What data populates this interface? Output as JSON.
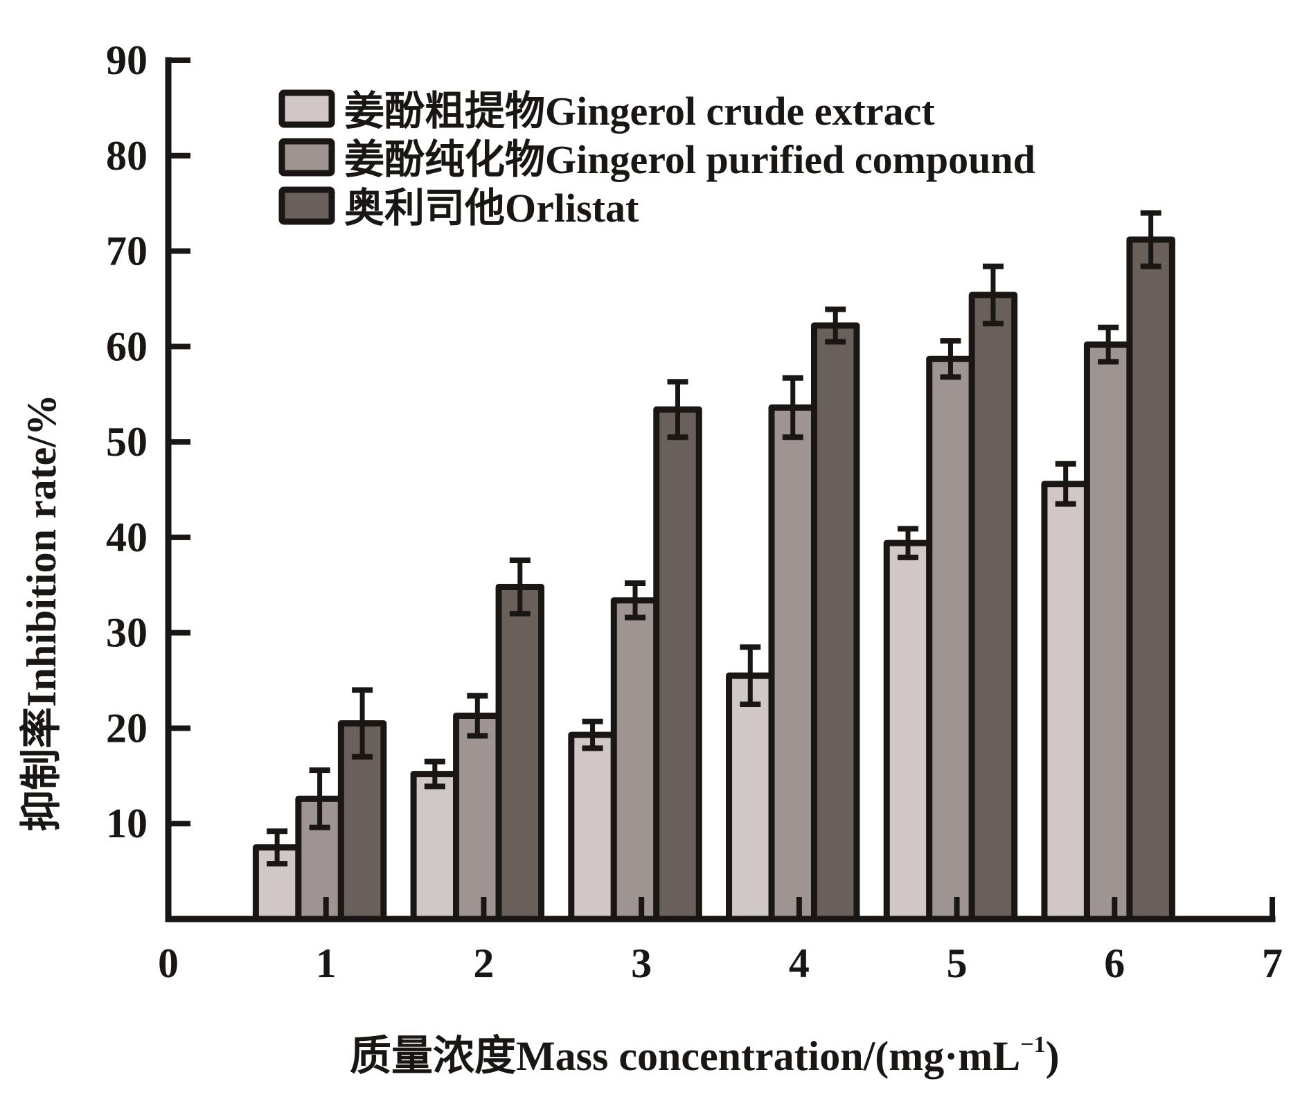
{
  "chart_data": {
    "type": "bar",
    "title": "",
    "xlabel": "质量浓度Mass concentration/(mg·mL",
    "xlabel_superscript": "−1",
    "xlabel_suffix": ")",
    "ylabel": "抑制率Inhibition rate/%",
    "xlim": [
      0,
      7
    ],
    "ylim": [
      0,
      90
    ],
    "x_ticks": [
      "0",
      "1",
      "2",
      "3",
      "4",
      "5",
      "6",
      "7"
    ],
    "y_ticks": [
      "10",
      "20",
      "30",
      "40",
      "50",
      "60",
      "70",
      "80",
      "90"
    ],
    "categories": [
      1,
      2,
      3,
      4,
      5,
      6
    ],
    "grid": false,
    "legend_position": "top-left",
    "series": [
      {
        "name": "姜酚粗提物Gingerol crude extract",
        "color": "#d0c8c6",
        "values": [
          7.5,
          15.2,
          19.3,
          25.5,
          39.4,
          45.6
        ],
        "errors": [
          1.7,
          1.3,
          1.4,
          3.0,
          1.5,
          2.1
        ]
      },
      {
        "name": "姜酚纯化物Gingerol purified compound",
        "color": "#9e9593",
        "values": [
          12.6,
          21.3,
          33.4,
          53.6,
          58.7,
          60.2
        ],
        "errors": [
          3.0,
          2.1,
          1.8,
          3.1,
          1.9,
          1.8
        ]
      },
      {
        "name": "奥利司他Orlistat",
        "color": "#6a605b",
        "values": [
          20.5,
          34.8,
          53.4,
          62.2,
          65.4,
          71.2
        ],
        "errors": [
          3.5,
          2.8,
          2.9,
          1.7,
          3.0,
          2.8
        ]
      }
    ]
  }
}
